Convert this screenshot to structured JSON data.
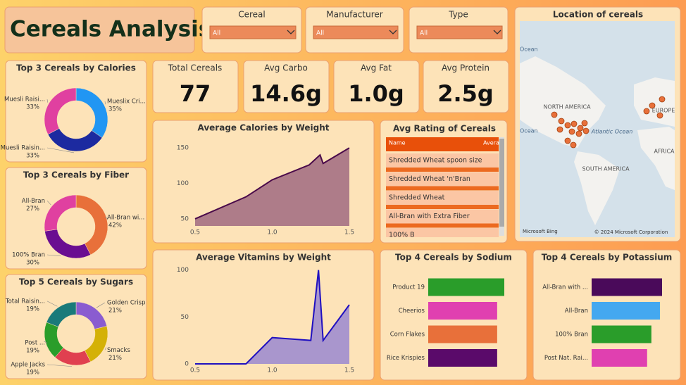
{
  "header": {
    "title": "Cereals Analysis"
  },
  "slicers": [
    {
      "label": "Cereal",
      "value": "All"
    },
    {
      "label": "Manufacturer",
      "value": "All"
    },
    {
      "label": "Type",
      "value": "All"
    }
  ],
  "cards": [
    {
      "label": "Total Cereals",
      "value": "77"
    },
    {
      "label": "Avg Carbo",
      "value": "14.6g"
    },
    {
      "label": "Avg Fat",
      "value": "1.0g"
    },
    {
      "label": "Avg Protein",
      "value": "2.5g"
    }
  ],
  "map": {
    "title": "Location of cereals",
    "labels": [
      "Ocean",
      "NORTH AMERICA",
      "EUROPE",
      "Ocean",
      "Atlantic Ocean",
      "AFRICA",
      "SOUTH AMERICA"
    ],
    "attribution": "Microsoft Bing",
    "copyright": "© 2024 Microsoft Corporation"
  },
  "table": {
    "title": "Avg Rating of Cereals",
    "columns": [
      "Name",
      "Avera"
    ],
    "rows": [
      "Shredded Wheat spoon size",
      "Shredded Wheat 'n'Bran",
      "Shredded Wheat",
      "All-Bran with Extra Fiber",
      "100% B"
    ]
  },
  "chart_data": [
    {
      "type": "donut",
      "title": "Top 3 Cereals by Calories",
      "categories": [
        "Mueslix Cri...",
        "Muesli Raisin...",
        "Muesli Raisi..."
      ],
      "values": [
        35,
        33,
        33
      ],
      "value_labels": [
        "35%",
        "33%",
        "33%"
      ],
      "colors": [
        "#2196f3",
        "#1c2aa0",
        "#e040a0"
      ]
    },
    {
      "type": "donut",
      "title": "Top 3 Cereals by Fiber",
      "categories": [
        "All-Bran wi...",
        "100% Bran",
        "All-Bran"
      ],
      "values": [
        42,
        30,
        27
      ],
      "value_labels": [
        "42%",
        "30%",
        "27%"
      ],
      "colors": [
        "#e8703a",
        "#6a0d91",
        "#e040a0"
      ]
    },
    {
      "type": "donut",
      "title": "Top 5 Cereals by Sugars",
      "categories": [
        "Golden Crisp",
        "Smacks",
        "Apple Jacks",
        "Post ...",
        "Total Raisin..."
      ],
      "values": [
        21,
        21,
        19,
        19,
        19
      ],
      "value_labels": [
        "21%",
        "21%",
        "19%",
        "19%",
        "19%"
      ],
      "colors": [
        "#8a5cd0",
        "#d4b106",
        "#e04050",
        "#2a9d2a",
        "#1a7a7a"
      ]
    },
    {
      "type": "area",
      "title": "Average Calories by Weight",
      "x": [
        0.5,
        0.83,
        1.0,
        1.24,
        1.31,
        1.33,
        1.5
      ],
      "values": [
        50,
        81,
        105,
        126,
        140,
        128,
        150
      ],
      "xlim": [
        0.5,
        1.5
      ],
      "ylim": [
        40,
        160
      ],
      "xticks": [
        0.5,
        {
          "value": 1,
          "label": "1.0"
        },
        1.5
      ],
      "yticks": [
        50,
        100,
        150
      ],
      "color": "#a06a80",
      "line_color": "#4a0a4a"
    },
    {
      "type": "area",
      "title": "Average Vitamins by Weight",
      "x": [
        0.5,
        0.83,
        1.0,
        1.25,
        1.3,
        1.33,
        1.5
      ],
      "values": [
        0,
        0,
        28,
        25,
        100,
        25,
        63
      ],
      "xlim": [
        0.5,
        1.5
      ],
      "ylim": [
        0,
        105
      ],
      "xticks": [
        0.5,
        {
          "value": 1,
          "label": "1.0"
        },
        1.5
      ],
      "yticks": [
        0,
        50,
        100
      ],
      "color": "#9a88d0",
      "line_color": "#2010c0"
    },
    {
      "type": "bar",
      "orientation": "horizontal",
      "title": "Top 4 Cereals by Sodium",
      "categories": [
        "Product 19",
        "Cheerios",
        "Corn Flakes",
        "Rice Krispies"
      ],
      "values": [
        320,
        290,
        290,
        290
      ],
      "xlim": [
        0,
        320
      ],
      "colors": [
        "#2a9d2a",
        "#e040b0",
        "#e8703a",
        "#5a0a6a"
      ]
    },
    {
      "type": "bar",
      "orientation": "horizontal",
      "title": "Top 4 Cereals by Potassium",
      "categories": [
        "All-Bran with ...",
        "All-Bran",
        "100% Bran",
        "Post Nat. Rai..."
      ],
      "values": [
        330,
        320,
        280,
        260
      ],
      "xlim": [
        0,
        330
      ],
      "colors": [
        "#4a0a5a",
        "#44a8f0",
        "#2a9d2a",
        "#e040b0"
      ]
    }
  ]
}
